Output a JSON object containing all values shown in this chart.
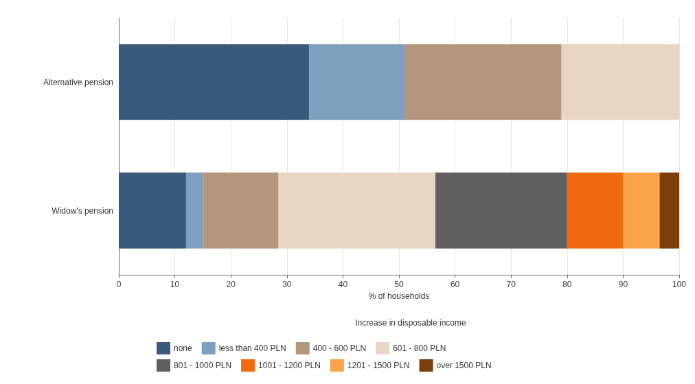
{
  "chart_data": {
    "type": "bar",
    "orientation": "horizontal",
    "stacked": true,
    "xlabel": "% of households",
    "legend_title": "Increase in disposable income",
    "legend": "bottom",
    "grid": "x",
    "categories": [
      "Alternative pension",
      "Widow's pension"
    ],
    "xlim": [
      0,
      100
    ],
    "xticks": [
      0,
      10,
      20,
      30,
      40,
      50,
      60,
      70,
      80,
      90,
      100
    ],
    "series": [
      {
        "name": "none",
        "color": "#3a5a7c",
        "values": [
          34,
          12
        ]
      },
      {
        "name": "less than 400 PLN",
        "color": "#7f9fbe",
        "values": [
          17,
          3
        ]
      },
      {
        "name": "400 - 600 PLN",
        "color": "#b4967c",
        "values": [
          28,
          13.5
        ]
      },
      {
        "name": "601 - 800 PLN",
        "color": "#e8d5c4",
        "values": [
          21,
          28
        ]
      },
      {
        "name": "801 - 1000 PLN",
        "color": "#5f5f5f",
        "values": [
          0,
          23.5
        ]
      },
      {
        "name": "1001 - 1200 PLN",
        "color": "#f26a0f",
        "values": [
          0,
          10
        ]
      },
      {
        "name": "1201 - 1500 PLN",
        "color": "#fba34a",
        "values": [
          0,
          6.5
        ]
      },
      {
        "name": "over 1500 PLN",
        "color": "#7a3f0a",
        "values": [
          0,
          3.5
        ]
      }
    ]
  }
}
